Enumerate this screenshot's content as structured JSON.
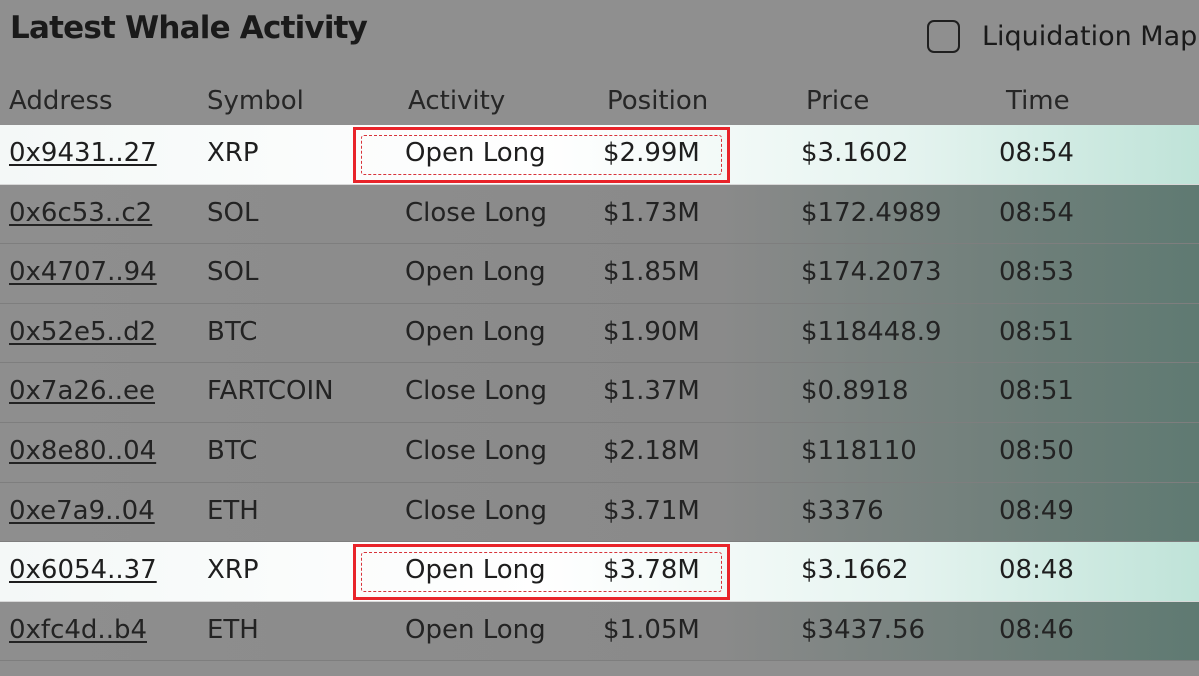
{
  "header": {
    "title": "Latest Whale Activity",
    "toggle_label": "Liquidation Map"
  },
  "columns": {
    "address": "Address",
    "symbol": "Symbol",
    "activity": "Activity",
    "position": "Position",
    "price": "Price",
    "time": "Time"
  },
  "rows": [
    {
      "address": "0x9431..27",
      "symbol": "XRP",
      "activity": "Open Long",
      "position": "$2.99M",
      "price": "$3.1602",
      "time": "08:54",
      "highlighted": true
    },
    {
      "address": "0x6c53..c2",
      "symbol": "SOL",
      "activity": "Close Long",
      "position": "$1.73M",
      "price": "$172.4989",
      "time": "08:54",
      "highlighted": false
    },
    {
      "address": "0x4707..94",
      "symbol": "SOL",
      "activity": "Open Long",
      "position": "$1.85M",
      "price": "$174.2073",
      "time": "08:53",
      "highlighted": false
    },
    {
      "address": "0x52e5..d2",
      "symbol": "BTC",
      "activity": "Open Long",
      "position": "$1.90M",
      "price": "$118448.9",
      "time": "08:51",
      "highlighted": false
    },
    {
      "address": "0x7a26..ee",
      "symbol": "FARTCOIN",
      "activity": "Close Long",
      "position": "$1.37M",
      "price": "$0.8918",
      "time": "08:51",
      "highlighted": false
    },
    {
      "address": "0x8e80..04",
      "symbol": "BTC",
      "activity": "Close Long",
      "position": "$2.18M",
      "price": "$118110",
      "time": "08:50",
      "highlighted": false
    },
    {
      "address": "0xe7a9..04",
      "symbol": "ETH",
      "activity": "Close Long",
      "position": "$3.71M",
      "price": "$3376",
      "time": "08:49",
      "highlighted": false
    },
    {
      "address": "0x6054..37",
      "symbol": "XRP",
      "activity": "Open Long",
      "position": "$3.78M",
      "price": "$3.1662",
      "time": "08:48",
      "highlighted": true
    },
    {
      "address": "0xfc4d..b4",
      "symbol": "ETH",
      "activity": "Open Long",
      "position": "$1.05M",
      "price": "$3437.56",
      "time": "08:46",
      "highlighted": false
    }
  ],
  "colors": {
    "overlay": "#8f8f8f",
    "highlight_row": "#ffffff",
    "annotation_box": "#e8242a"
  }
}
